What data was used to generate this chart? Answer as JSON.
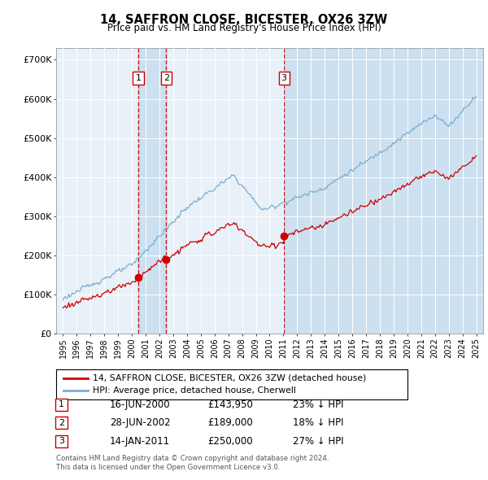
{
  "title": "14, SAFFRON CLOSE, BICESTER, OX26 3ZW",
  "subtitle": "Price paid vs. HM Land Registry's House Price Index (HPI)",
  "footer1": "Contains HM Land Registry data © Crown copyright and database right 2024.",
  "footer2": "This data is licensed under the Open Government Licence v3.0.",
  "legend_property": "14, SAFFRON CLOSE, BICESTER, OX26 3ZW (detached house)",
  "legend_hpi": "HPI: Average price, detached house, Cherwell",
  "property_color": "#cc0000",
  "hpi_color": "#7aadcf",
  "highlight_color": "#cce0f0",
  "background_color": "#e8f0f8",
  "plot_bg": "#ffffff",
  "vline_color": "#cc0000",
  "purchases": [
    {
      "label": "1",
      "date_num": 2000.46,
      "price": 143950,
      "text": "16-JUN-2000",
      "amount": "£143,950",
      "pct": "23% ↓ HPI"
    },
    {
      "label": "2",
      "date_num": 2002.49,
      "price": 189000,
      "text": "28-JUN-2002",
      "amount": "£189,000",
      "pct": "18% ↓ HPI"
    },
    {
      "label": "3",
      "date_num": 2011.04,
      "price": 250000,
      "text": "14-JAN-2011",
      "amount": "£250,000",
      "pct": "27% ↓ HPI"
    }
  ],
  "ylim": [
    0,
    730000
  ],
  "xlim": [
    1994.5,
    2025.5
  ],
  "yticks": [
    0,
    100000,
    200000,
    300000,
    400000,
    500000,
    600000,
    700000
  ],
  "ytick_labels": [
    "£0",
    "£100K",
    "£200K",
    "£300K",
    "£400K",
    "£500K",
    "£600K",
    "£700K"
  ]
}
